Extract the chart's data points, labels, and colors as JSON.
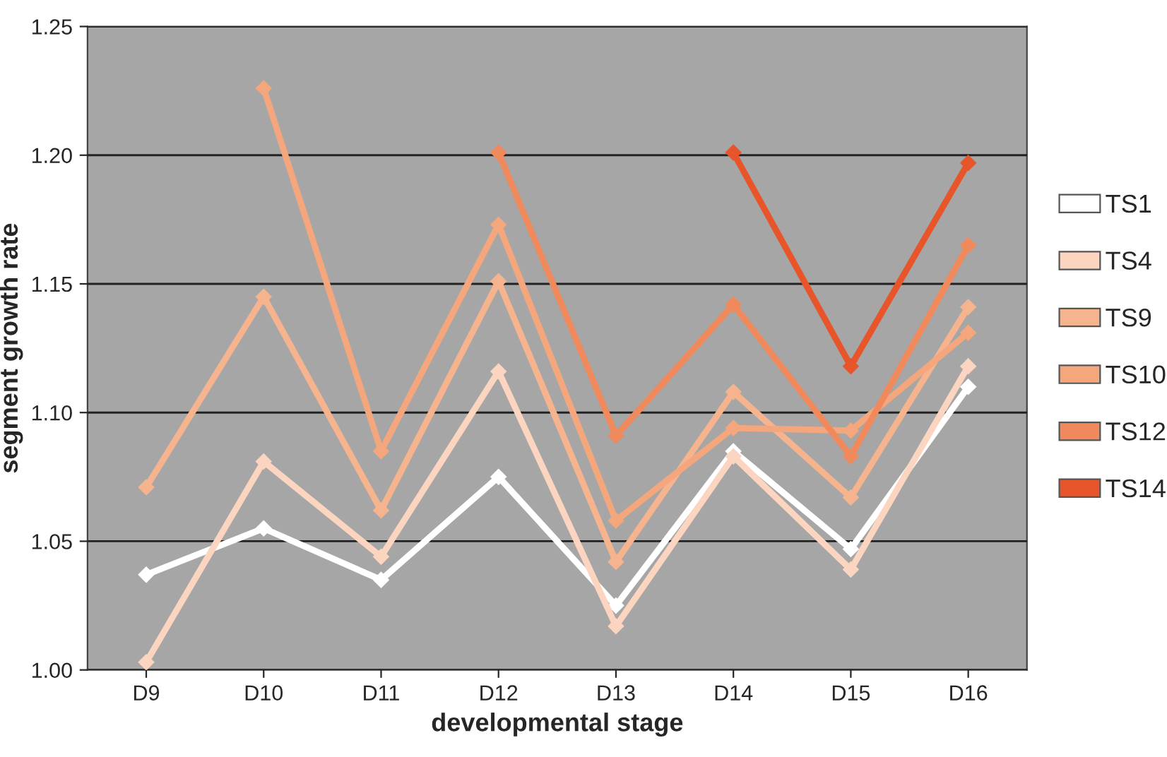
{
  "chart_data": {
    "type": "line",
    "xlabel": "developmental stage",
    "ylabel": "segment growth rate",
    "categories": [
      "D9",
      "D10",
      "D11",
      "D12",
      "D13",
      "D14",
      "D15",
      "D16"
    ],
    "series": [
      {
        "name": "TS1",
        "color": "#ffffff",
        "values": [
          1.037,
          1.055,
          1.035,
          1.075,
          1.025,
          1.085,
          1.047,
          1.11
        ]
      },
      {
        "name": "TS4",
        "color": "#fbd5bf",
        "values": [
          1.003,
          1.081,
          1.044,
          1.116,
          1.017,
          1.083,
          1.039,
          1.118
        ]
      },
      {
        "name": "TS9",
        "color": "#f6b48e",
        "values": [
          1.071,
          1.145,
          1.062,
          1.151,
          1.042,
          1.108,
          1.067,
          1.141
        ]
      },
      {
        "name": "TS10",
        "color": "#f4a67c",
        "values": [
          null,
          1.226,
          1.085,
          1.173,
          1.058,
          1.094,
          1.093,
          1.131
        ]
      },
      {
        "name": "TS12",
        "color": "#f08a5c",
        "values": [
          null,
          null,
          null,
          1.201,
          1.091,
          1.142,
          1.083,
          1.165
        ]
      },
      {
        "name": "TS14",
        "color": "#e8552b",
        "values": [
          null,
          null,
          null,
          null,
          null,
          1.201,
          1.118,
          1.197
        ]
      }
    ],
    "ylim": [
      1.0,
      1.25
    ],
    "yticks": [
      {
        "value": 1.0,
        "label": "1.00"
      },
      {
        "value": 1.05,
        "label": "1.05"
      },
      {
        "value": 1.1,
        "label": "1.10"
      },
      {
        "value": 1.15,
        "label": "1.15"
      },
      {
        "value": 1.2,
        "label": "1.20"
      },
      {
        "value": 1.25,
        "label": "1.25"
      }
    ],
    "grid": "y",
    "legend": "right",
    "marker": "diamond",
    "line_style": "solid"
  }
}
